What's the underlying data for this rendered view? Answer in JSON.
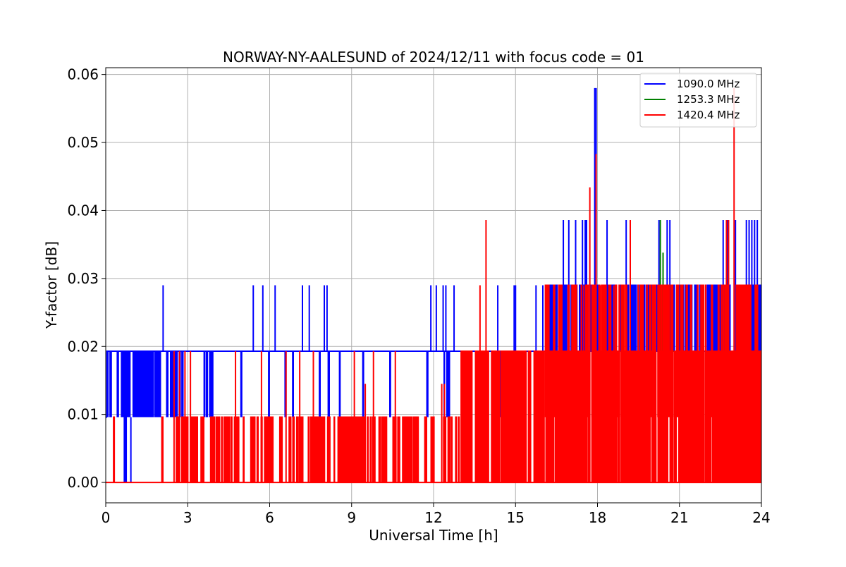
{
  "chart_data": {
    "type": "line",
    "title": "NORWAY-NY-AALESUND of 2024/12/11 with focus code = 01",
    "xlabel": "Universal Time [h]",
    "ylabel": "Y-factor [dB]",
    "xlim": [
      0,
      24
    ],
    "ylim": [
      -0.003,
      0.061
    ],
    "xticks": [
      0,
      3,
      6,
      9,
      12,
      15,
      18,
      21,
      24
    ],
    "xtick_labels": [
      "0",
      "3",
      "6",
      "9",
      "12",
      "15",
      "18",
      "21",
      "24"
    ],
    "yticks": [
      0.0,
      0.01,
      0.02,
      0.03,
      0.04,
      0.05,
      0.06
    ],
    "ytick_labels": [
      "0.00",
      "0.01",
      "0.02",
      "0.03",
      "0.04",
      "0.05",
      "0.06"
    ],
    "grid": true,
    "legend_position": "top-right",
    "series": [
      {
        "name": "1090.0 MHz",
        "color": "#0000ff",
        "baseline": 0.0193,
        "base_segments": [
          {
            "x": [
              0.0,
              0.05
            ],
            "y": 0.0096
          },
          {
            "x": [
              0.05,
              2.0
            ],
            "y": 0.0193
          },
          {
            "x": [
              2.0,
              24.0
            ],
            "y": 0.0193
          }
        ],
        "flicker_regions": [
          {
            "x": [
              0.0,
              0.25
            ],
            "low": 0.0096,
            "high": 0.0193,
            "count": 4
          },
          {
            "x": [
              0.4,
              2.0
            ],
            "low": 0.0096,
            "high": 0.0193,
            "count": 45
          },
          {
            "x": [
              2.15,
              3.1
            ],
            "low": 0.0096,
            "high": 0.0193,
            "count": 8
          },
          {
            "x": [
              3.6,
              3.95
            ],
            "low": 0.0096,
            "high": 0.0193,
            "count": 10
          },
          {
            "x": [
              4.0,
              12.0
            ],
            "low": 0.0096,
            "high": 0.0193,
            "count": 10
          },
          {
            "x": [
              12.0,
              16.0
            ],
            "low": 0.0096,
            "high": 0.0193,
            "count": 6
          },
          {
            "x": [
              16.0,
              24.0
            ],
            "low": 0.0193,
            "high": 0.029,
            "count": 150
          }
        ],
        "dips_to_zero": [
          0.68,
          0.72,
          0.75,
          0.92
        ],
        "spikes": [
          {
            "x": 2.1,
            "y": 0.029
          },
          {
            "x": 5.4,
            "y": 0.029
          },
          {
            "x": 5.75,
            "y": 0.029
          },
          {
            "x": 6.2,
            "y": 0.029
          },
          {
            "x": 7.2,
            "y": 0.029
          },
          {
            "x": 7.45,
            "y": 0.029
          },
          {
            "x": 8.0,
            "y": 0.029
          },
          {
            "x": 8.1,
            "y": 0.029
          },
          {
            "x": 11.9,
            "y": 0.029
          },
          {
            "x": 12.1,
            "y": 0.029
          },
          {
            "x": 12.35,
            "y": 0.029
          },
          {
            "x": 12.45,
            "y": 0.029
          },
          {
            "x": 12.75,
            "y": 0.029
          },
          {
            "x": 14.35,
            "y": 0.029
          },
          {
            "x": 14.95,
            "y": 0.029
          },
          {
            "x": 15.0,
            "y": 0.029
          },
          {
            "x": 15.75,
            "y": 0.029
          },
          {
            "x": 16.0,
            "y": 0.029
          },
          {
            "x": 16.75,
            "y": 0.0386
          },
          {
            "x": 16.95,
            "y": 0.0386
          },
          {
            "x": 17.2,
            "y": 0.0386
          },
          {
            "x": 17.45,
            "y": 0.0386
          },
          {
            "x": 17.55,
            "y": 0.0386
          },
          {
            "x": 17.6,
            "y": 0.0386
          },
          {
            "x": 17.9,
            "y": 0.058
          },
          {
            "x": 17.95,
            "y": 0.058
          },
          {
            "x": 18.35,
            "y": 0.0386
          },
          {
            "x": 19.05,
            "y": 0.0386
          },
          {
            "x": 20.25,
            "y": 0.0386
          },
          {
            "x": 20.55,
            "y": 0.0386
          },
          {
            "x": 20.65,
            "y": 0.0386
          },
          {
            "x": 22.6,
            "y": 0.0386
          },
          {
            "x": 22.75,
            "y": 0.0386
          },
          {
            "x": 23.05,
            "y": 0.0386
          },
          {
            "x": 23.45,
            "y": 0.0386
          },
          {
            "x": 23.55,
            "y": 0.0386
          },
          {
            "x": 23.65,
            "y": 0.0386
          },
          {
            "x": 23.75,
            "y": 0.0386
          },
          {
            "x": 23.85,
            "y": 0.0386
          }
        ]
      },
      {
        "name": "1253.3 MHz",
        "color": "#008000",
        "baseline": 0.0193,
        "base_segments": [
          {
            "x": [
              20.2,
              20.8
            ],
            "y": 0.0193
          },
          {
            "x": [
              23.15,
              23.6
            ],
            "y": 0.0193
          }
        ],
        "flicker_regions": [
          {
            "x": [
              20.25,
              20.7
            ],
            "low": 0.0193,
            "high": 0.029,
            "count": 6
          },
          {
            "x": [
              23.2,
              23.5
            ],
            "low": 0.0096,
            "high": 0.029,
            "count": 6
          }
        ],
        "dips_to_zero": [],
        "spikes": [
          {
            "x": 20.3,
            "y": 0.0386
          },
          {
            "x": 20.4,
            "y": 0.0338
          }
        ]
      },
      {
        "name": "1420.4 MHz",
        "color": "#ff0000",
        "baseline": 0.0,
        "base_segments": [
          {
            "x": [
              0.0,
              24.0
            ],
            "y": 0.0
          }
        ],
        "flicker_regions": [
          {
            "x": [
              0.25,
              0.35
            ],
            "low": 0.0,
            "high": 0.0096,
            "count": 2
          },
          {
            "x": [
              2.0,
              2.1
            ],
            "low": 0.0,
            "high": 0.0096,
            "count": 2
          },
          {
            "x": [
              2.4,
              5.0
            ],
            "low": 0.0,
            "high": 0.0096,
            "count": 40
          },
          {
            "x": [
              5.0,
              9.0
            ],
            "low": 0.0,
            "high": 0.0096,
            "count": 60
          },
          {
            "x": [
              9.0,
              13.0
            ],
            "low": 0.0,
            "high": 0.0096,
            "count": 70
          },
          {
            "x": [
              13.0,
              16.0
            ],
            "low": 0.0,
            "high": 0.0193,
            "count": 110
          },
          {
            "x": [
              16.0,
              24.0
            ],
            "low": 0.0,
            "high": 0.0193,
            "count": 320
          },
          {
            "x": [
              16.0,
              24.0
            ],
            "low": 0.0096,
            "high": 0.029,
            "count": 90
          }
        ],
        "dips_to_zero": [],
        "spikes": [
          {
            "x": 2.5,
            "y": 0.0193
          },
          {
            "x": 2.7,
            "y": 0.0193
          },
          {
            "x": 2.9,
            "y": 0.0193
          },
          {
            "x": 3.1,
            "y": 0.0193
          },
          {
            "x": 4.75,
            "y": 0.0193
          },
          {
            "x": 5.7,
            "y": 0.0193
          },
          {
            "x": 6.6,
            "y": 0.0193
          },
          {
            "x": 7.1,
            "y": 0.0193
          },
          {
            "x": 7.6,
            "y": 0.0193
          },
          {
            "x": 9.1,
            "y": 0.0193
          },
          {
            "x": 9.5,
            "y": 0.0145
          },
          {
            "x": 9.8,
            "y": 0.0193
          },
          {
            "x": 10.6,
            "y": 0.0193
          },
          {
            "x": 12.3,
            "y": 0.0145
          },
          {
            "x": 12.4,
            "y": 0.0145
          },
          {
            "x": 13.7,
            "y": 0.029
          },
          {
            "x": 13.92,
            "y": 0.0386
          },
          {
            "x": 15.15,
            "y": 0.0145
          },
          {
            "x": 17.5,
            "y": 0.029
          },
          {
            "x": 17.72,
            "y": 0.0434
          },
          {
            "x": 17.95,
            "y": 0.0483
          },
          {
            "x": 18.1,
            "y": 0.029
          },
          {
            "x": 18.6,
            "y": 0.029
          },
          {
            "x": 19.2,
            "y": 0.0386
          },
          {
            "x": 22.72,
            "y": 0.0386
          },
          {
            "x": 22.8,
            "y": 0.0386
          },
          {
            "x": 23.0,
            "y": 0.058
          },
          {
            "x": 23.2,
            "y": 0.029
          }
        ]
      }
    ]
  }
}
